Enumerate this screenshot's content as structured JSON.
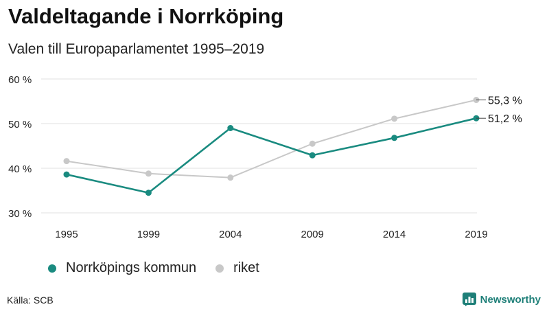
{
  "title": "Valdeltagande i Norrköping",
  "subtitle": "Valen till Europaparlamentet 1995–2019",
  "source": "Källa: SCB",
  "brand": {
    "name": "Newsworthy",
    "color": "#1e7f78",
    "icon": "newsworthy-logo-icon"
  },
  "chart_data": {
    "type": "line",
    "title": "Valdeltagande i Norrköping",
    "subtitle": "Valen till Europaparlamentet 1995–2019",
    "categories": [
      "1995",
      "1999",
      "2004",
      "2009",
      "2014",
      "2019"
    ],
    "ylim": [
      30,
      60
    ],
    "yticks": [
      30,
      40,
      50,
      60
    ],
    "ytick_labels": [
      "30 %",
      "40 %",
      "50 %",
      "60 %"
    ],
    "xlabel": "",
    "ylabel": "",
    "grid": true,
    "legend_position": "bottom-left",
    "series": [
      {
        "name": "riket",
        "color": "#c8c8c8",
        "values": [
          41.6,
          38.8,
          37.9,
          45.5,
          51.1,
          55.3
        ],
        "end_label": "55,3 %"
      },
      {
        "name": "Norrköpings kommun",
        "color": "#1a8b80",
        "values": [
          38.6,
          34.5,
          49.0,
          42.9,
          46.8,
          51.2
        ],
        "end_label": "51,2 %"
      }
    ],
    "legend": [
      "Norrköpings kommun",
      "riket"
    ]
  }
}
